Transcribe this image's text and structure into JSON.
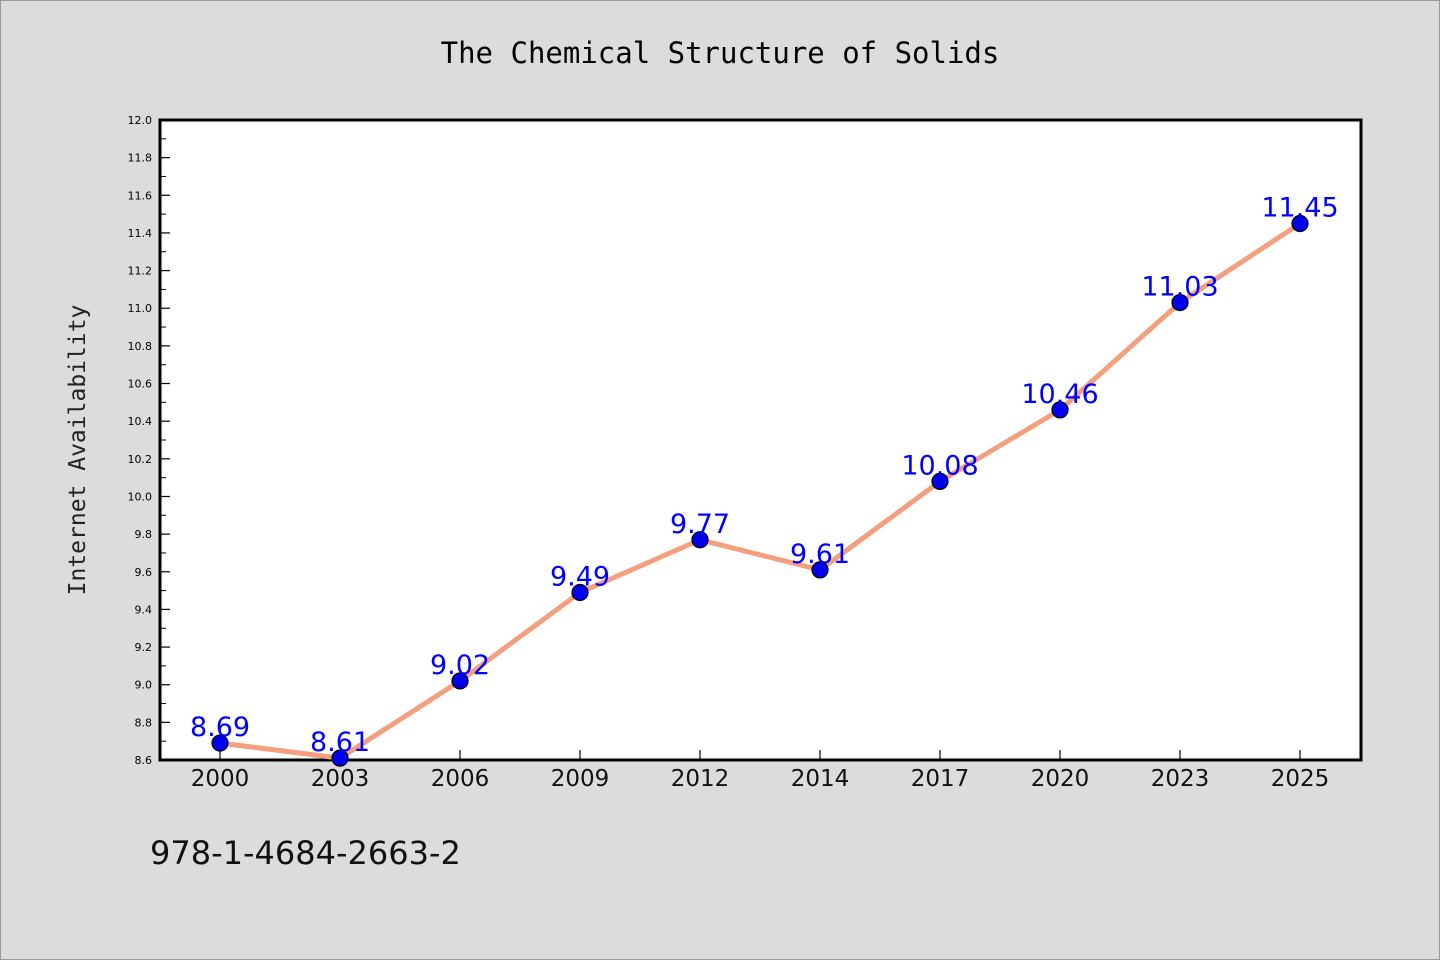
{
  "chart_data": {
    "type": "line",
    "title": "The Chemical Structure of Solids",
    "xlabel": "",
    "ylabel": "Internet Availability",
    "categories": [
      "2000",
      "2003",
      "2006",
      "2009",
      "2012",
      "2014",
      "2017",
      "2020",
      "2023",
      "2025"
    ],
    "series": [
      {
        "values": [
          8.69,
          8.61,
          9.02,
          9.49,
          9.77,
          9.61,
          10.08,
          10.46,
          11.03,
          11.45
        ],
        "labels": [
          "8.69",
          "8.61",
          "9.02",
          "9.49",
          "9.77",
          "9.61",
          "10.08",
          "10.46",
          "11.03",
          "11.45"
        ]
      }
    ],
    "ylim": [
      8.6,
      12.0
    ],
    "yticks": [
      "8.6",
      "8.8",
      "9.0",
      "9.2",
      "9.4",
      "9.6",
      "9.8",
      "10.0",
      "10.2",
      "10.4",
      "10.6",
      "10.8",
      "11.0",
      "11.2",
      "11.4",
      "11.6",
      "11.8",
      "12.0"
    ],
    "grid": false,
    "line_color": "#f4a07e",
    "marker_color": "#0000ee",
    "data_label_color": "#0000ff"
  },
  "footer": {
    "isbn": "978-1-4684-2663-2"
  }
}
